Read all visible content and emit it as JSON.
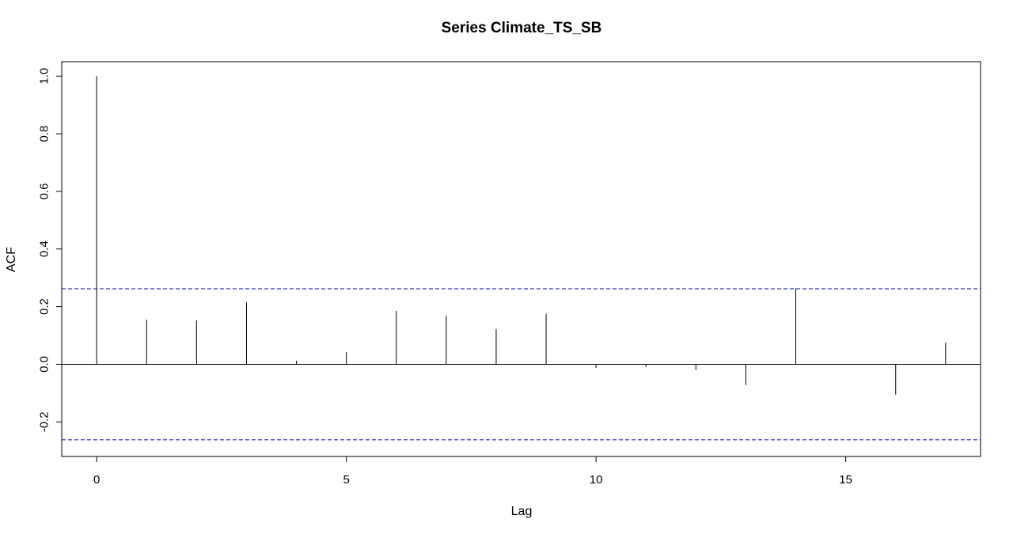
{
  "chart_data": {
    "type": "bar",
    "title": "Series  Climate_TS_SB",
    "xlabel": "Lag",
    "ylabel": "ACF",
    "xlim": [
      -0.7,
      17.7
    ],
    "ylim": [
      -0.32,
      1.05
    ],
    "x_ticks": [
      0,
      5,
      10,
      15
    ],
    "y_ticks": [
      -0.2,
      0.0,
      0.2,
      0.4,
      0.6,
      0.8,
      1.0
    ],
    "y_tick_labels": [
      "-0.2",
      "0.0",
      "0.2",
      "0.4",
      "0.6",
      "0.8",
      "1.0"
    ],
    "x_tick_labels": [
      "0",
      "5",
      "10",
      "15"
    ],
    "lags": [
      0,
      1,
      2,
      3,
      4,
      5,
      6,
      7,
      8,
      9,
      10,
      11,
      12,
      13,
      14,
      15,
      16,
      17
    ],
    "acf": [
      1.0,
      0.155,
      0.152,
      0.215,
      0.012,
      0.042,
      0.185,
      0.168,
      0.122,
      0.175,
      -0.013,
      -0.01,
      -0.02,
      -0.072,
      0.263,
      -0.002,
      -0.105,
      0.075
    ],
    "confidence_bound": 0.262,
    "confidence_color": "#0000cc",
    "bar_color": "#000000",
    "grid": false
  }
}
